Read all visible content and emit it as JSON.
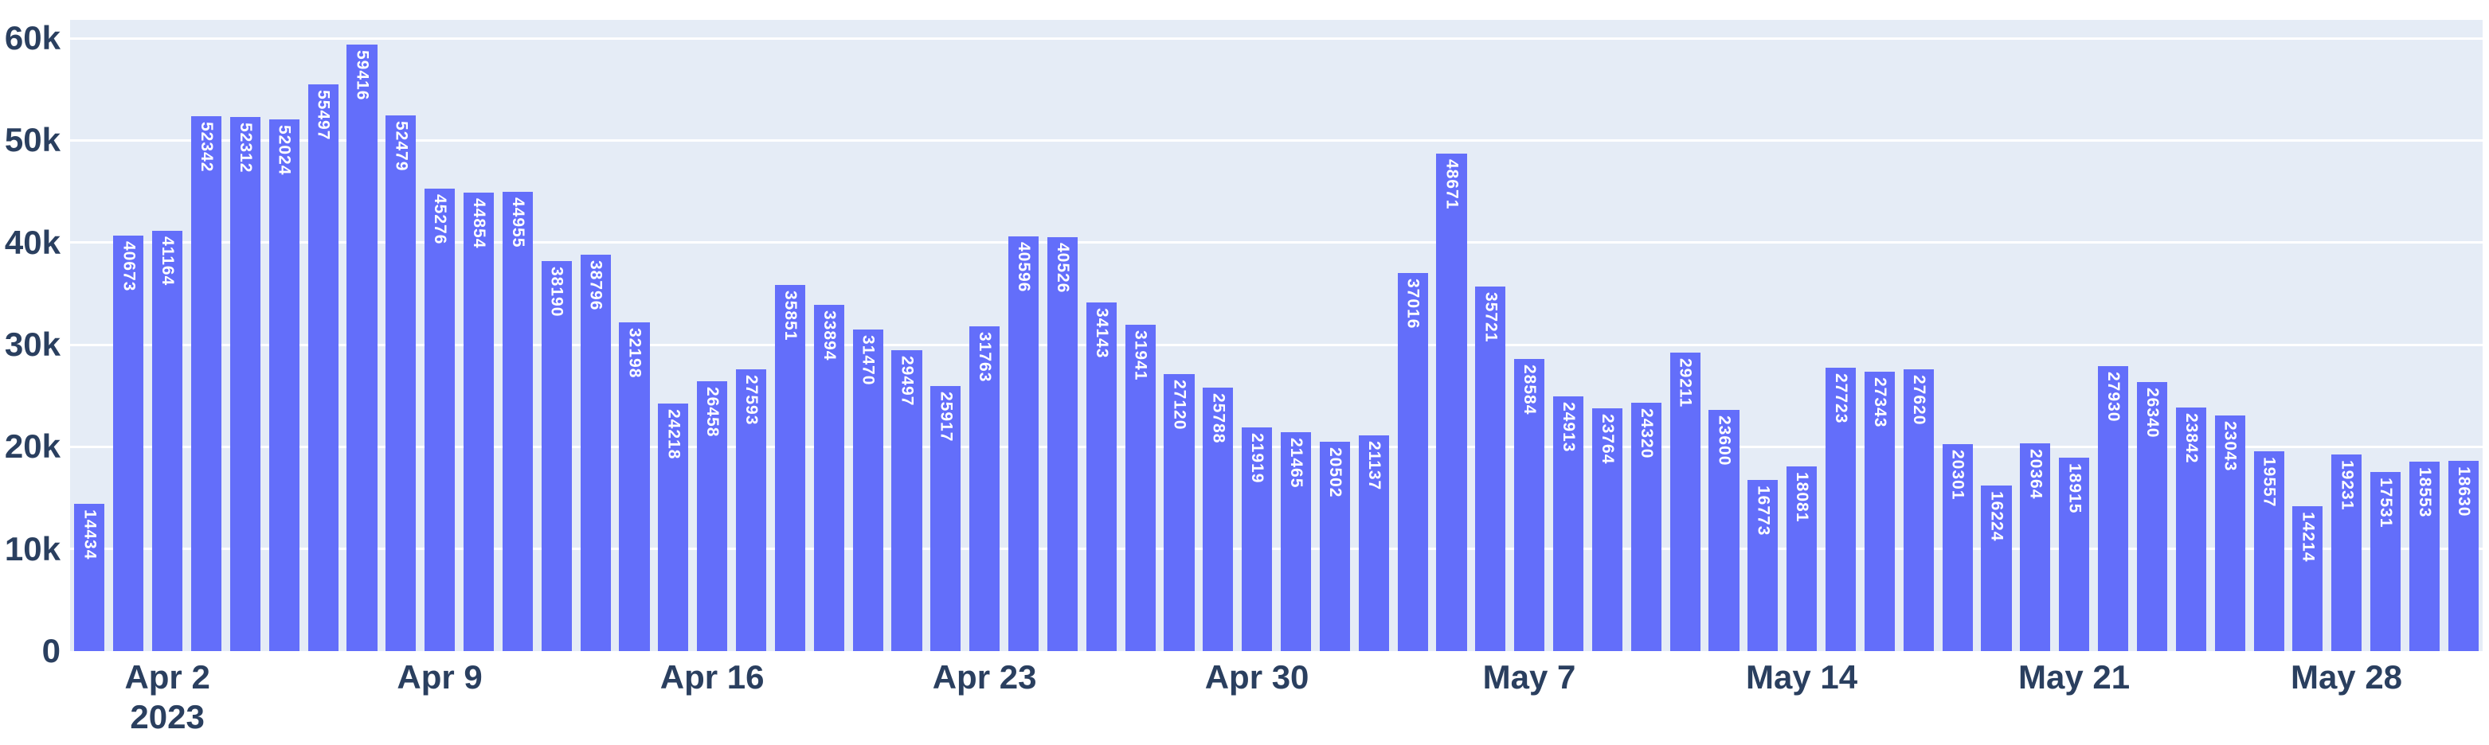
{
  "chart_data": {
    "type": "bar",
    "title": "",
    "legend": "none",
    "grid": "horizontal-white-behind-bars",
    "bar_value_labels": "inside-top-rotated-90cw",
    "values": [
      14434,
      40673,
      41164,
      52342,
      52312,
      52024,
      55497,
      59416,
      52479,
      45276,
      44854,
      44955,
      38190,
      38796,
      32198,
      24218,
      26458,
      27593,
      35851,
      33894,
      31470,
      29497,
      25917,
      31763,
      40596,
      40526,
      34143,
      31941,
      27120,
      25788,
      21919,
      21465,
      20502,
      21137,
      37016,
      48671,
      35721,
      28584,
      24913,
      23764,
      24320,
      29211,
      23600,
      16773,
      18081,
      27723,
      27343,
      27620,
      20301,
      16224,
      20364,
      18915,
      27930,
      26340,
      23842,
      23043,
      19557,
      14214,
      19231,
      17531,
      18553,
      18630
    ],
    "x_axis": {
      "ticks": [
        {
          "label": "Apr 2",
          "sublabel": "2023",
          "bar_index": 2
        },
        {
          "label": "Apr 9",
          "bar_index": 9
        },
        {
          "label": "Apr 16",
          "bar_index": 16
        },
        {
          "label": "Apr 23",
          "bar_index": 23
        },
        {
          "label": "Apr 30",
          "bar_index": 30
        },
        {
          "label": "May 7",
          "bar_index": 37
        },
        {
          "label": "May 14",
          "bar_index": 44
        },
        {
          "label": "May 21",
          "bar_index": 51
        },
        {
          "label": "May 28",
          "bar_index": 58
        }
      ]
    },
    "y_axis": {
      "ticks": [
        {
          "label": "0",
          "value": 0
        },
        {
          "label": "10k",
          "value": 10000
        },
        {
          "label": "20k",
          "value": 20000
        },
        {
          "label": "30k",
          "value": 30000
        },
        {
          "label": "40k",
          "value": 40000
        },
        {
          "label": "50k",
          "value": 50000
        },
        {
          "label": "60k",
          "value": 60000
        }
      ],
      "range": [
        0,
        61800
      ]
    },
    "colors": {
      "bar": "#636efa",
      "plot_background": "#e5ecf6",
      "gridline": "#ffffff",
      "axis_text": "#2a3f5f",
      "bar_label_text": "#ffffff",
      "page_background": "#ffffff"
    }
  }
}
